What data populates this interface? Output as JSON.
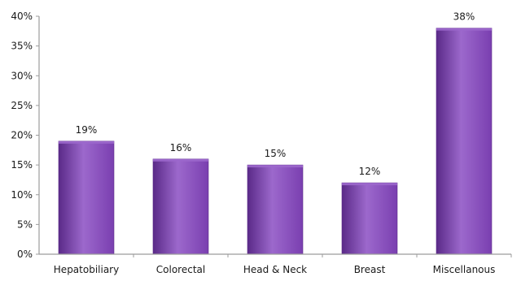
{
  "chart_data": {
    "type": "bar",
    "categories": [
      "Hepatobiliary",
      "Colorectal",
      "Head & Neck",
      "Breast",
      "Miscellanous"
    ],
    "values": [
      19,
      16,
      15,
      12,
      38
    ],
    "data_labels": [
      "19%",
      "16%",
      "15%",
      "12%",
      "38%"
    ],
    "y_ticks": [
      0,
      5,
      10,
      15,
      20,
      25,
      30,
      35,
      40
    ],
    "y_tick_labels": [
      "0%",
      "5%",
      "10%",
      "15%",
      "20%",
      "25%",
      "30%",
      "35%",
      "40%"
    ],
    "ylim": [
      0,
      40
    ],
    "grid": false,
    "legend": "none",
    "title": "",
    "xlabel": "",
    "ylabel": "",
    "colors": {
      "bar_fill": "#7a3fb0",
      "bar_highlight": "#9c68cc",
      "bar_edge": "#5a2a88",
      "axis": "#9c9c9c",
      "text": "#1a1a1a"
    }
  }
}
